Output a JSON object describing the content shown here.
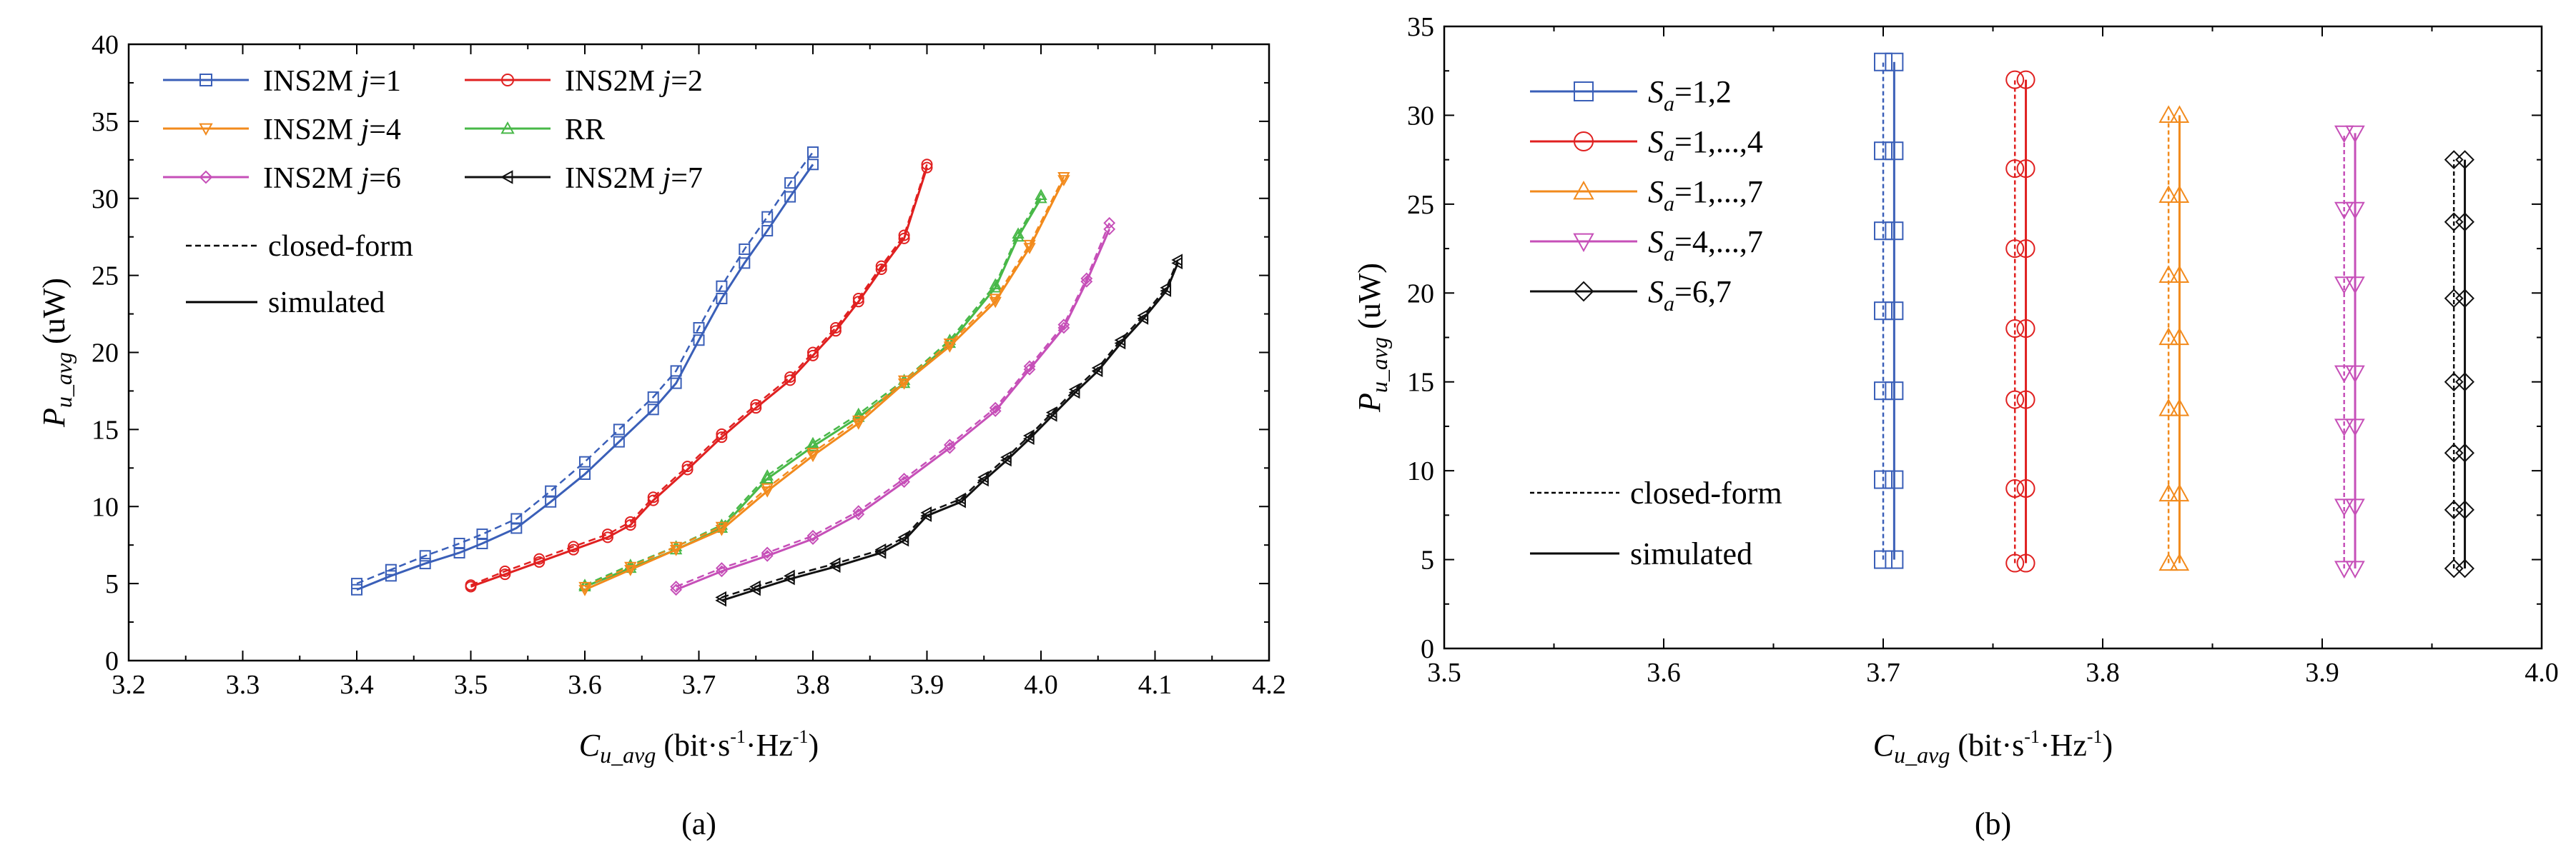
{
  "chart_data": [
    {
      "type": "line",
      "panel_label": "(a)",
      "xlabel": {
        "main": "C",
        "sub": "u_avg",
        "unit_parts": [
          "(bit·s",
          "-1",
          "·Hz",
          "-1",
          ")"
        ]
      },
      "ylabel": {
        "main": "P",
        "sub": "u_avg",
        "unit": "(uW)"
      },
      "xlim": [
        3.2,
        4.2
      ],
      "ylim": [
        0,
        40
      ],
      "xticks": [
        "3.2",
        "3.3",
        "3.4",
        "3.5",
        "3.6",
        "3.7",
        "3.8",
        "3.9",
        "4.0",
        "4.1",
        "4.2"
      ],
      "yticks": [
        "0",
        "5",
        "10",
        "15",
        "20",
        "25",
        "30",
        "35",
        "40"
      ],
      "legend": {
        "position": "top-left",
        "entries": [
          {
            "prefix": "INS2M ",
            "var": "j",
            "suffix": "=1"
          },
          {
            "prefix": "INS2M ",
            "var": "j",
            "suffix": "=2"
          },
          {
            "prefix": "INS2M ",
            "var": "j",
            "suffix": "=4"
          },
          {
            "prefix": "RR",
            "var": "",
            "suffix": ""
          },
          {
            "prefix": "INS2M ",
            "var": "j",
            "suffix": "=6"
          },
          {
            "prefix": "INS2M ",
            "var": "j",
            "suffix": "=7"
          }
        ],
        "style_entries": [
          "closed-form",
          "simulated"
        ]
      },
      "series": [
        {
          "name": "INS2M j=1",
          "color": "#3a5fb8",
          "marker": "square",
          "simulated": {
            "x": [
              3.4,
              3.43,
              3.46,
              3.49,
              3.51,
              3.54,
              3.57,
              3.6,
              3.63,
              3.66,
              3.68,
              3.7,
              3.72,
              3.74,
              3.76,
              3.78,
              3.8
            ],
            "y": [
              4.6,
              5.5,
              6.3,
              7.0,
              7.6,
              8.6,
              10.3,
              12.1,
              14.2,
              16.3,
              18.0,
              20.8,
              23.5,
              25.8,
              27.9,
              30.1,
              32.2
            ]
          },
          "closed_form": {
            "x": [
              3.4,
              3.43,
              3.46,
              3.49,
              3.51,
              3.54,
              3.57,
              3.6,
              3.63,
              3.66,
              3.68,
              3.7,
              3.72,
              3.74,
              3.76,
              3.78,
              3.8
            ],
            "y": [
              5.0,
              5.9,
              6.8,
              7.6,
              8.2,
              9.2,
              11.0,
              12.9,
              15.0,
              17.1,
              18.8,
              21.6,
              24.3,
              26.7,
              28.8,
              31.0,
              33.0
            ]
          }
        },
        {
          "name": "INS2M j=2",
          "color": "#e02020",
          "marker": "circle",
          "simulated": {
            "x": [
              3.5,
              3.53,
              3.56,
              3.59,
              3.62,
              3.64,
              3.66,
              3.69,
              3.72,
              3.75,
              3.78,
              3.8,
              3.82,
              3.84,
              3.86,
              3.88,
              3.9
            ],
            "y": [
              4.8,
              5.6,
              6.4,
              7.2,
              8.0,
              8.8,
              10.4,
              12.4,
              14.5,
              16.4,
              18.2,
              19.8,
              21.4,
              23.3,
              25.4,
              27.4,
              32.0
            ]
          },
          "closed_form": {
            "x": [
              3.5,
              3.53,
              3.56,
              3.59,
              3.62,
              3.64,
              3.66,
              3.69,
              3.72,
              3.75,
              3.78,
              3.8,
              3.82,
              3.84,
              3.86,
              3.88,
              3.9
            ],
            "y": [
              4.9,
              5.8,
              6.6,
              7.4,
              8.2,
              9.0,
              10.6,
              12.6,
              14.7,
              16.6,
              18.4,
              20.0,
              21.6,
              23.5,
              25.6,
              27.6,
              32.2
            ]
          }
        },
        {
          "name": "RR",
          "color": "#48b848",
          "marker": "triangle-up",
          "simulated": {
            "x": [
              3.6,
              3.64,
              3.68,
              3.72,
              3.76,
              3.8,
              3.84,
              3.88,
              3.92,
              3.96,
              3.98,
              4.0
            ],
            "y": [
              4.8,
              6.0,
              7.2,
              8.6,
              11.8,
              13.9,
              15.8,
              18.0,
              20.6,
              24.2,
              27.5,
              30.0
            ]
          },
          "closed_form": {
            "x": [
              3.6,
              3.64,
              3.68,
              3.72,
              3.76,
              3.8,
              3.84,
              3.88,
              3.92,
              3.96,
              3.98,
              4.0
            ],
            "y": [
              4.9,
              6.2,
              7.4,
              8.8,
              12.0,
              14.1,
              16.0,
              18.2,
              20.8,
              24.4,
              27.7,
              30.2
            ]
          }
        },
        {
          "name": "INS2M j=4",
          "color": "#f28a1c",
          "marker": "triangle-down",
          "simulated": {
            "x": [
              3.6,
              3.64,
              3.68,
              3.72,
              3.76,
              3.8,
              3.84,
              3.88,
              3.92,
              3.96,
              3.99,
              4.02
            ],
            "y": [
              4.6,
              5.9,
              7.2,
              8.5,
              11.0,
              13.3,
              15.4,
              18.0,
              20.4,
              23.3,
              26.8,
              31.2
            ]
          },
          "closed_form": {
            "x": [
              3.6,
              3.64,
              3.68,
              3.72,
              3.76,
              3.8,
              3.84,
              3.88,
              3.92,
              3.96,
              3.99,
              4.02
            ],
            "y": [
              4.8,
              6.1,
              7.4,
              8.7,
              11.2,
              13.5,
              15.6,
              18.2,
              20.6,
              23.5,
              27.0,
              31.4
            ]
          }
        },
        {
          "name": "INS2M j=6",
          "color": "#c64fb8",
          "marker": "diamond",
          "simulated": {
            "x": [
              3.68,
              3.72,
              3.76,
              3.8,
              3.84,
              3.88,
              3.92,
              3.96,
              3.99,
              4.02,
              4.04,
              4.06
            ],
            "y": [
              4.6,
              5.8,
              6.8,
              7.9,
              9.5,
              11.6,
              13.8,
              16.2,
              18.9,
              21.6,
              24.6,
              28.0
            ]
          },
          "closed_form": {
            "x": [
              3.68,
              3.72,
              3.76,
              3.8,
              3.84,
              3.88,
              3.92,
              3.96,
              3.99,
              4.02,
              4.04,
              4.06
            ],
            "y": [
              4.8,
              6.0,
              7.0,
              8.1,
              9.7,
              11.8,
              14.0,
              16.4,
              19.1,
              21.8,
              24.8,
              28.4
            ]
          }
        },
        {
          "name": "INS2M j=7",
          "color": "#111111",
          "marker": "triangle-left",
          "simulated": {
            "x": [
              3.72,
              3.75,
              3.78,
              3.82,
              3.86,
              3.88,
              3.9,
              3.93,
              3.95,
              3.97,
              3.99,
              4.01,
              4.03,
              4.05,
              4.07,
              4.09,
              4.11,
              4.12
            ],
            "y": [
              3.9,
              4.6,
              5.3,
              6.1,
              7.0,
              7.8,
              9.4,
              10.3,
              11.7,
              13.0,
              14.4,
              15.9,
              17.4,
              18.8,
              20.6,
              22.2,
              24.0,
              25.8
            ]
          },
          "closed_form": {
            "x": [
              3.72,
              3.75,
              3.78,
              3.82,
              3.86,
              3.88,
              3.9,
              3.93,
              3.95,
              3.97,
              3.99,
              4.01,
              4.03,
              4.05,
              4.07,
              4.09,
              4.11,
              4.12
            ],
            "y": [
              4.1,
              4.8,
              5.5,
              6.3,
              7.2,
              8.0,
              9.6,
              10.5,
              11.9,
              13.2,
              14.6,
              16.1,
              17.6,
              19.0,
              20.8,
              22.4,
              24.2,
              26.0
            ]
          }
        }
      ]
    },
    {
      "type": "line",
      "panel_label": "(b)",
      "xlabel": {
        "main": "C",
        "sub": "u_avg",
        "unit_parts": [
          "(bit·s",
          "-1",
          "·Hz",
          "-1",
          ")"
        ]
      },
      "ylabel": {
        "main": "P",
        "sub": "u_avg",
        "unit": "(uW)"
      },
      "xlim": [
        3.5,
        4.0
      ],
      "ylim": [
        0,
        35
      ],
      "xticks": [
        "3.5",
        "3.6",
        "3.7",
        "3.8",
        "3.9",
        "4.0"
      ],
      "yticks": [
        "0",
        "5",
        "10",
        "15",
        "20",
        "25",
        "30",
        "35"
      ],
      "legend": {
        "position": "top-left",
        "entries": [
          {
            "var": "S",
            "sub": "a",
            "suffix": "=1,2"
          },
          {
            "var": "S",
            "sub": "a",
            "suffix": "=1,...,4"
          },
          {
            "var": "S",
            "sub": "a",
            "suffix": "=1,...,7"
          },
          {
            "var": "S",
            "sub": "a",
            "suffix": "=4,...,7"
          },
          {
            "var": "S",
            "sub": "a",
            "suffix": "=6,7"
          }
        ],
        "style_entries": [
          "closed-form",
          "simulated"
        ]
      },
      "series": [
        {
          "name": "Sa=1,2",
          "color": "#3a5fb8",
          "marker": "square",
          "x_closed_form": 3.7,
          "x_simulated": 3.705,
          "y": [
            5,
            9.5,
            14.5,
            19,
            23.5,
            28,
            33
          ]
        },
        {
          "name": "Sa=1,...,4",
          "color": "#e02020",
          "marker": "circle",
          "x_closed_form": 3.76,
          "x_simulated": 3.765,
          "y": [
            4.8,
            9,
            14,
            18,
            22.5,
            27,
            32
          ]
        },
        {
          "name": "Sa=1,...,7",
          "color": "#f28a1c",
          "marker": "triangle-up",
          "x_closed_form": 3.83,
          "x_simulated": 3.835,
          "y": [
            4.8,
            8.7,
            13.5,
            17.5,
            21,
            25.5,
            30
          ]
        },
        {
          "name": "Sa=4,...,7",
          "color": "#c64fb8",
          "marker": "triangle-down",
          "x_closed_form": 3.91,
          "x_simulated": 3.915,
          "y": [
            4.5,
            8,
            12.5,
            15.5,
            20.5,
            24.7,
            29
          ]
        },
        {
          "name": "Sa=6,7",
          "color": "#111111",
          "marker": "diamond",
          "x_closed_form": 3.96,
          "x_simulated": 3.965,
          "y": [
            4.5,
            7.8,
            11,
            15,
            19.7,
            24,
            27.5
          ]
        }
      ]
    }
  ]
}
